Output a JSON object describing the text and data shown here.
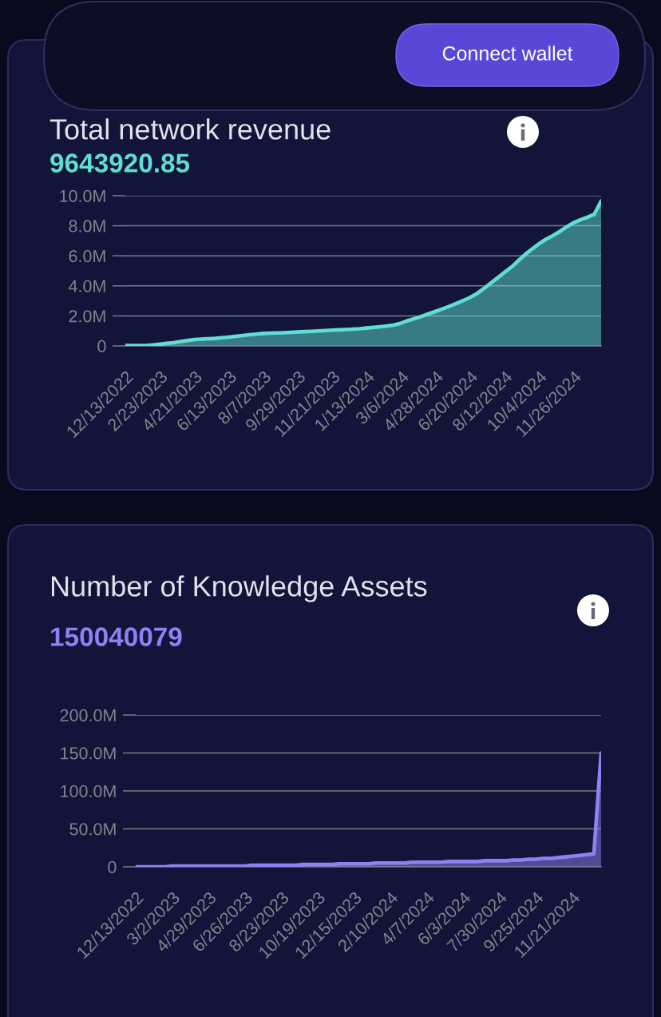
{
  "chart_data": [
    {
      "type": "area",
      "title": "Total network revenue",
      "subtitle": "9643920.85",
      "annotations": [
        "Connect wallet"
      ],
      "categories": [
        "12/13/2022",
        null,
        null,
        null,
        null,
        "2/23/2023",
        null,
        null,
        null,
        null,
        "4/21/2023",
        null,
        null,
        null,
        null,
        "6/13/2023",
        null,
        null,
        null,
        null,
        "8/7/2023",
        null,
        null,
        null,
        null,
        "9/29/2023",
        null,
        null,
        null,
        null,
        "11/21/2023",
        null,
        null,
        null,
        null,
        "1/13/2024",
        null,
        null,
        null,
        null,
        "3/6/2024",
        null,
        null,
        null,
        null,
        "4/28/2024",
        null,
        null,
        null,
        null,
        "6/20/2024",
        null,
        null,
        null,
        null,
        "8/12/2024",
        null,
        null,
        null,
        null,
        "10/4/2024",
        null,
        null,
        null,
        null,
        "11/26/2024",
        null,
        null,
        null,
        null
      ],
      "series": [
        {
          "color": "#5fdfd3",
          "values": [
            20000,
            20000,
            20000,
            30000,
            70000,
            120000,
            170000,
            210000,
            290000,
            360000,
            430000,
            450000,
            480000,
            500000,
            550000,
            590000,
            640000,
            690000,
            740000,
            780000,
            830000,
            850000,
            860000,
            880000,
            900000,
            930000,
            950000,
            970000,
            1000000,
            1020000,
            1050000,
            1070000,
            1090000,
            1120000,
            1140000,
            1190000,
            1240000,
            1280000,
            1330000,
            1400000,
            1520000,
            1690000,
            1830000,
            1970000,
            2140000,
            2300000,
            2470000,
            2640000,
            2830000,
            3020000,
            3230000,
            3490000,
            3820000,
            4180000,
            4540000,
            4900000,
            5250000,
            5680000,
            6100000,
            6460000,
            6800000,
            7100000,
            7340000,
            7620000,
            7930000,
            8200000,
            8400000,
            8570000,
            8760000,
            9640000
          ]
        }
      ],
      "ylim": [
        0,
        10000000
      ],
      "yticks": [
        0,
        {
          "value": 2000000,
          "label": "2.0M"
        },
        {
          "value": 4000000,
          "label": "4.0M"
        },
        {
          "value": 6000000,
          "label": "6.0M"
        },
        {
          "value": 8000000,
          "label": "8.0M"
        },
        {
          "value": 10000000,
          "label": "10.0M"
        }
      ],
      "grid": "y"
    },
    {
      "type": "area",
      "title": "Number of Knowledge Assets",
      "subtitle": "150040079",
      "categories": [
        "12/13/2022",
        null,
        null,
        null,
        null,
        "3/2/2023",
        null,
        null,
        null,
        null,
        "4/29/2023",
        null,
        null,
        null,
        null,
        "6/26/2023",
        null,
        null,
        null,
        null,
        "8/23/2023",
        null,
        null,
        null,
        null,
        "10/19/2023",
        null,
        null,
        null,
        null,
        "12/15/2023",
        null,
        null,
        null,
        null,
        "2/10/2024",
        null,
        null,
        null,
        null,
        "4/7/2024",
        null,
        null,
        null,
        null,
        "6/3/2024",
        null,
        null,
        null,
        null,
        "7/30/2024",
        null,
        null,
        null,
        null,
        "9/25/2024",
        null,
        null,
        null,
        null,
        "11/21/2024",
        null,
        null,
        null,
        null
      ],
      "series": [
        {
          "color": "#8a83f2",
          "values": [
            0,
            0,
            0,
            0,
            0,
            1000000,
            1000000,
            1000000,
            1000000,
            1000000,
            1000000,
            1000000,
            1000000,
            1000000,
            1000000,
            1000000,
            2000000,
            2000000,
            2000000,
            2000000,
            2000000,
            2000000,
            2000000,
            3000000,
            3000000,
            3000000,
            3000000,
            3000000,
            4000000,
            4000000,
            4000000,
            4000000,
            4000000,
            5000000,
            5000000,
            5000000,
            5000000,
            5000000,
            6000000,
            6000000,
            6000000,
            6000000,
            6000000,
            7000000,
            7000000,
            7000000,
            7000000,
            7000000,
            8000000,
            8000000,
            8000000,
            8000000,
            9000000,
            9000000,
            10000000,
            10000000,
            11000000,
            11000000,
            12000000,
            13000000,
            14000000,
            15000000,
            16000000,
            17000000,
            150000000
          ]
        }
      ],
      "ylim": [
        0,
        200000000
      ],
      "yticks": [
        0,
        {
          "value": 50000000,
          "label": "50.0M"
        },
        {
          "value": 100000000,
          "label": "100.0M"
        },
        {
          "value": 150000000,
          "label": "150.0M"
        },
        {
          "value": 200000000,
          "label": "200.0M"
        }
      ],
      "grid": "y"
    }
  ]
}
